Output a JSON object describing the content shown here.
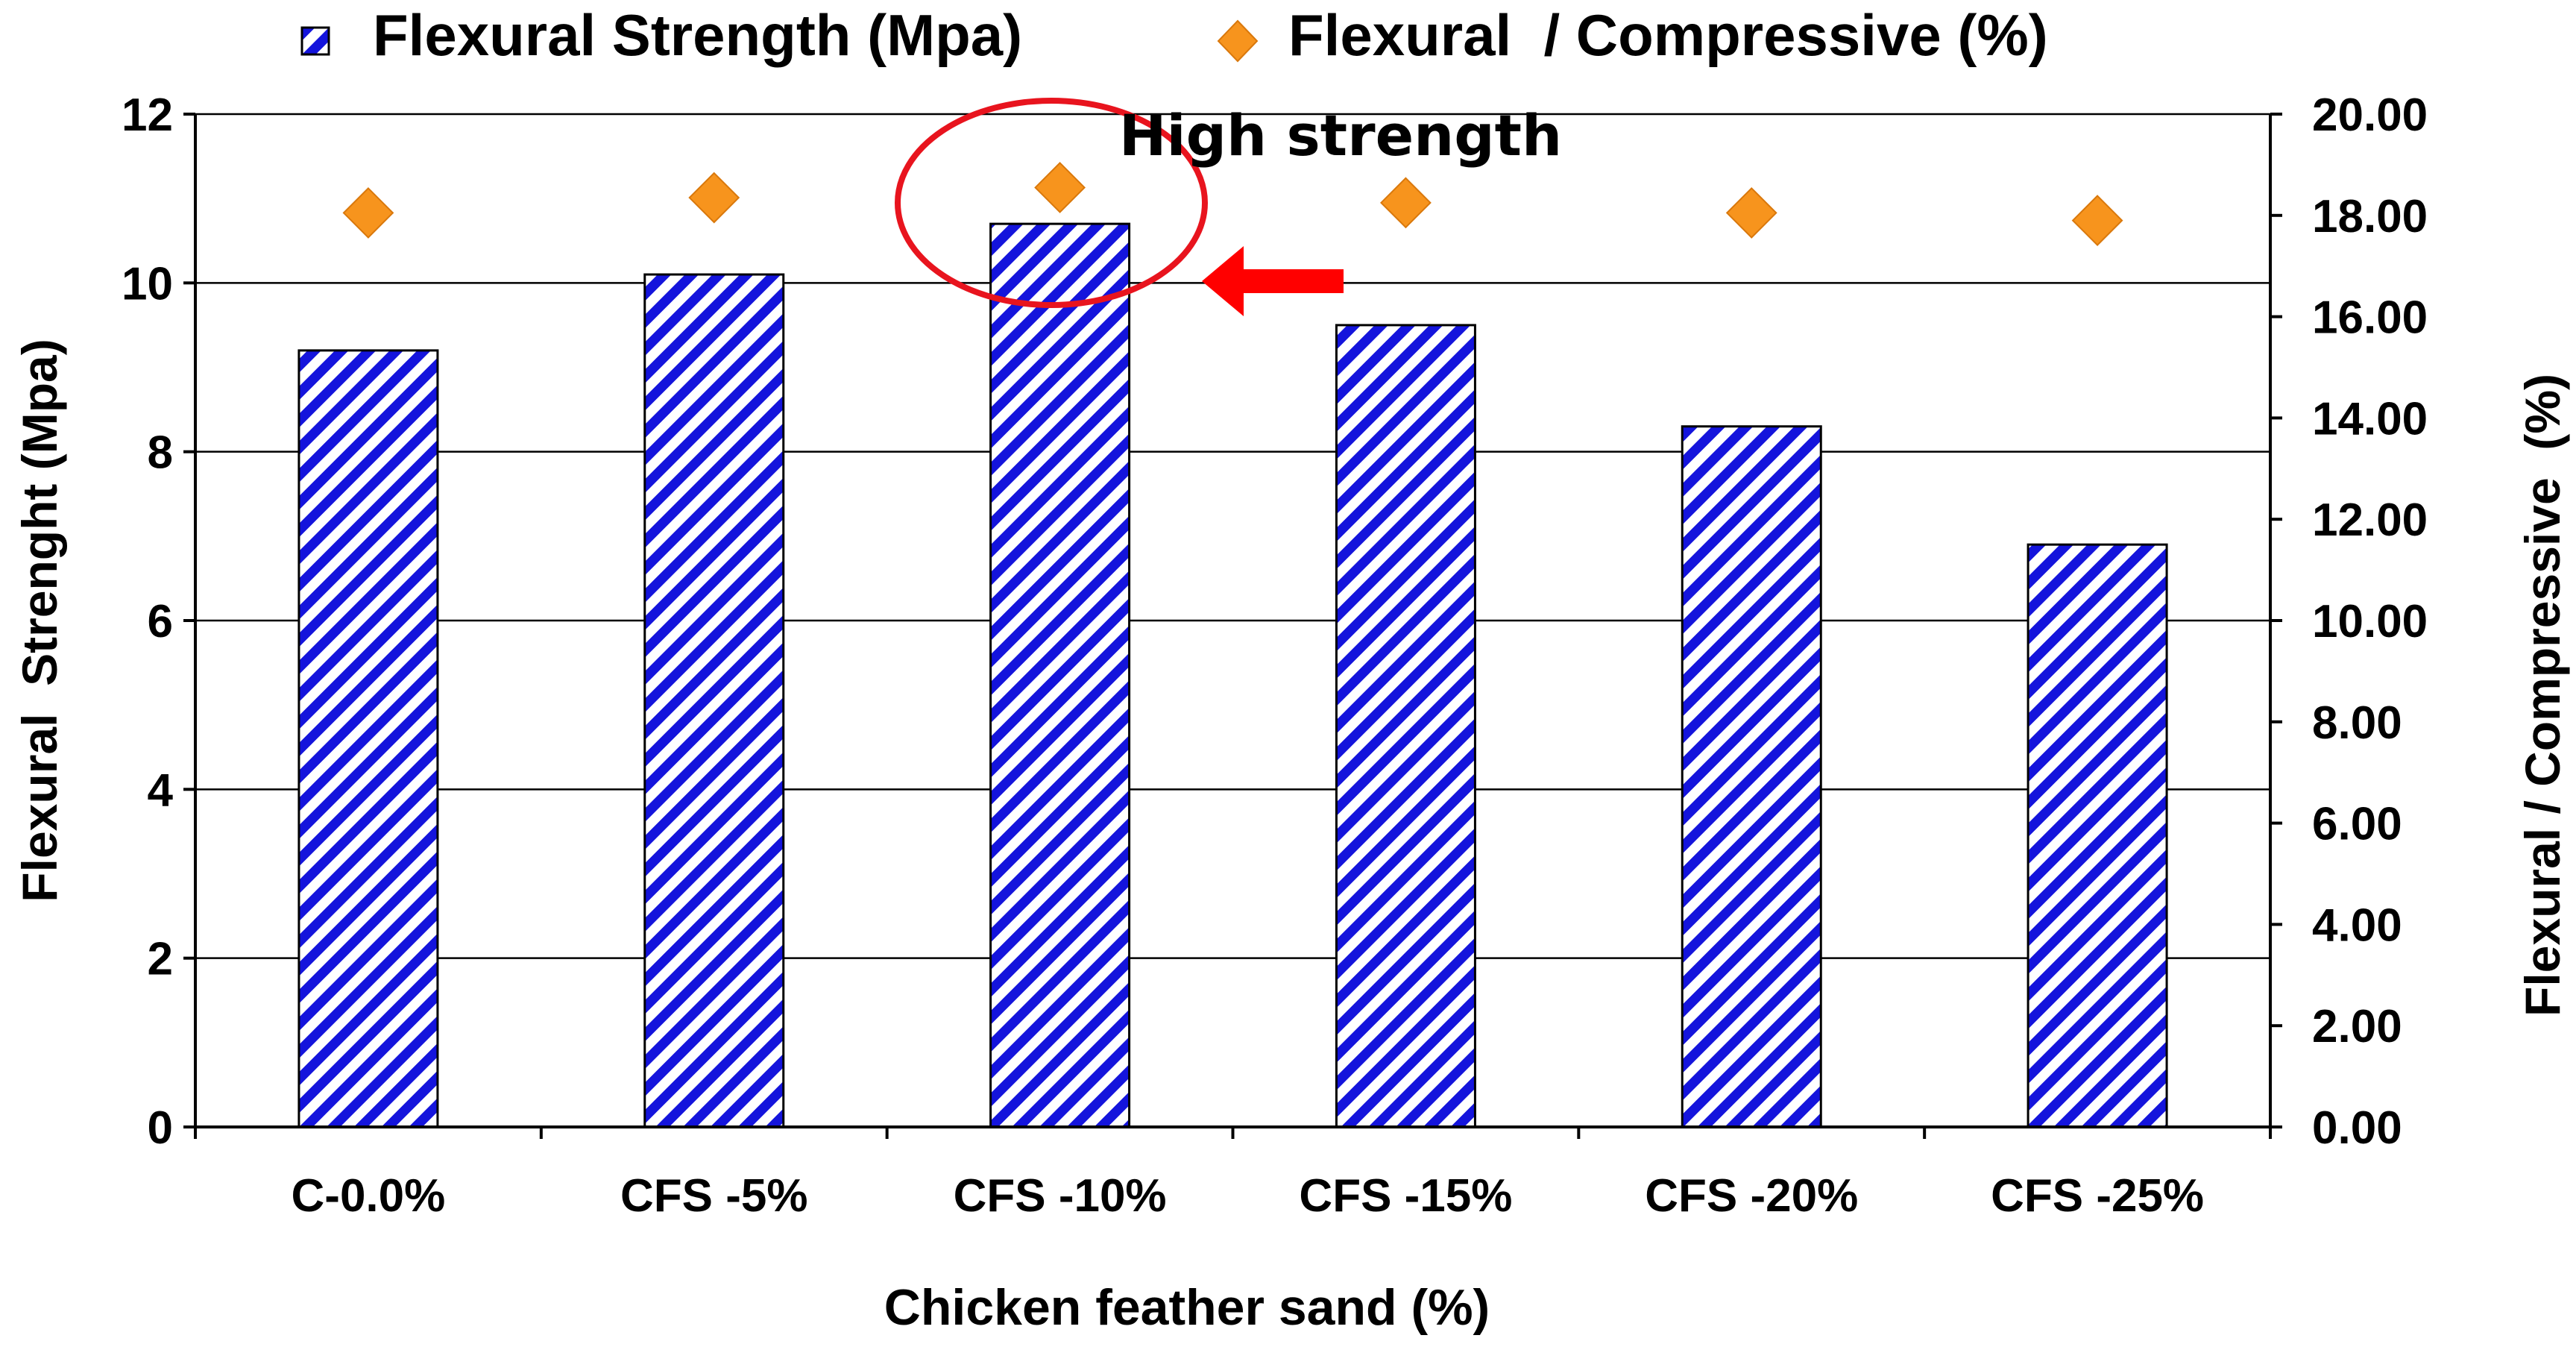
{
  "chart_data": {
    "type": "bar",
    "title": "",
    "categories": [
      "C-0.0%",
      "CFS -5%",
      "CFS -10%",
      "CFS -15%",
      "CFS -20%",
      "CFS -25%"
    ],
    "series": [
      {
        "name": "Flexural Strength (Mpa)",
        "kind": "bar",
        "axis": "left",
        "values": [
          9.2,
          10.1,
          10.7,
          9.5,
          8.3,
          6.9
        ]
      },
      {
        "name": "Flexural  / Compressive (%)",
        "kind": "marker",
        "axis": "right",
        "values": [
          18.05,
          18.35,
          18.55,
          18.25,
          18.05,
          17.9
        ]
      }
    ],
    "xlabel": "Chicken feather sand (%)",
    "ylabel": "Flexural  Strenght (Mpa)",
    "y2label": "Flexural / Compressive  (%)",
    "ylim": [
      0,
      12
    ],
    "y2lim": [
      0,
      20
    ],
    "yticks": [
      "0",
      "2",
      "4",
      "6",
      "8",
      "10",
      "12"
    ],
    "y2ticks": [
      "0.00",
      "2.00",
      "4.00",
      "6.00",
      "8.00",
      "10.00",
      "12.00",
      "14.00",
      "16.00",
      "18.00",
      "20.00"
    ],
    "grid": true,
    "legend": "top",
    "annotation": {
      "text": "High strength",
      "category_index": 2
    },
    "colors": {
      "bar_stripe": "#1414dc",
      "bar_fill": "#ffffff",
      "marker": "#f7941d",
      "marker_edge": "#d9780c",
      "highlight": "#e8141e"
    }
  }
}
